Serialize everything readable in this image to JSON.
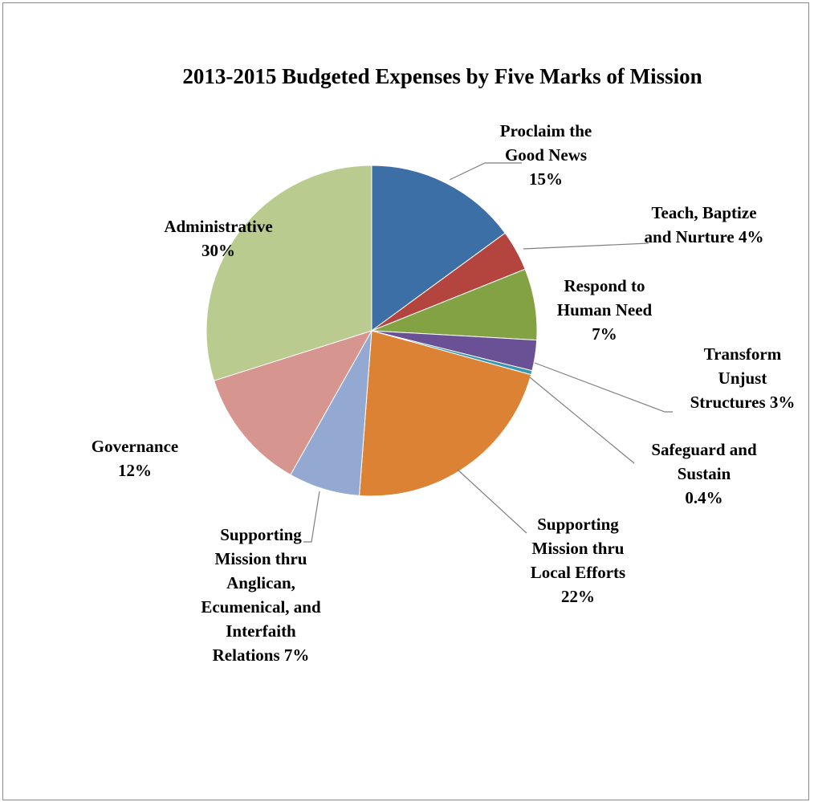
{
  "chart_data": {
    "type": "pie",
    "title": "2013-2015 Budgeted Expenses by Five Marks of Mission",
    "slices": [
      {
        "name": "Proclaim the Good News",
        "value": 15,
        "label_lines": [
          "Proclaim the",
          "Good News",
          "15%"
        ],
        "color": "#3c6fa5"
      },
      {
        "name": "Teach, Baptize and Nurture",
        "value": 4,
        "label_lines": [
          "Teach, Baptize",
          "and Nurture 4%"
        ],
        "color": "#b4443e"
      },
      {
        "name": "Respond to Human Need",
        "value": 7,
        "label_lines": [
          "Respond to",
          "Human Need",
          "7%"
        ],
        "color": "#83a244"
      },
      {
        "name": "Transform Unjust Structures",
        "value": 3,
        "label_lines": [
          "Transform",
          "Unjust",
          "Structures 3%"
        ],
        "color": "#6a5094"
      },
      {
        "name": "Safeguard and Sustain",
        "value": 0.4,
        "label_lines": [
          "Safeguard and",
          "Sustain",
          "0.4%"
        ],
        "color": "#3996b1"
      },
      {
        "name": "Supporting Mission thru Local Efforts",
        "value": 22,
        "label_lines": [
          "Supporting",
          "Mission thru",
          "Local Efforts",
          "22%"
        ],
        "color": "#dc8234"
      },
      {
        "name": "Supporting Mission thru Anglican, Ecumenical, and Interfaith Relations",
        "value": 7,
        "label_lines": [
          "Supporting",
          "Mission thru",
          "Anglican,",
          "Ecumenical, and",
          "Interfaith",
          "Relations 7%"
        ],
        "color": "#93a9d1"
      },
      {
        "name": "Governance",
        "value": 12,
        "label_lines": [
          "Governance",
          "12%"
        ],
        "color": "#d79590"
      },
      {
        "name": "Administrative",
        "value": 30,
        "label_lines": [
          "Administrative",
          "30%"
        ],
        "color": "#b9cb8f"
      }
    ]
  }
}
